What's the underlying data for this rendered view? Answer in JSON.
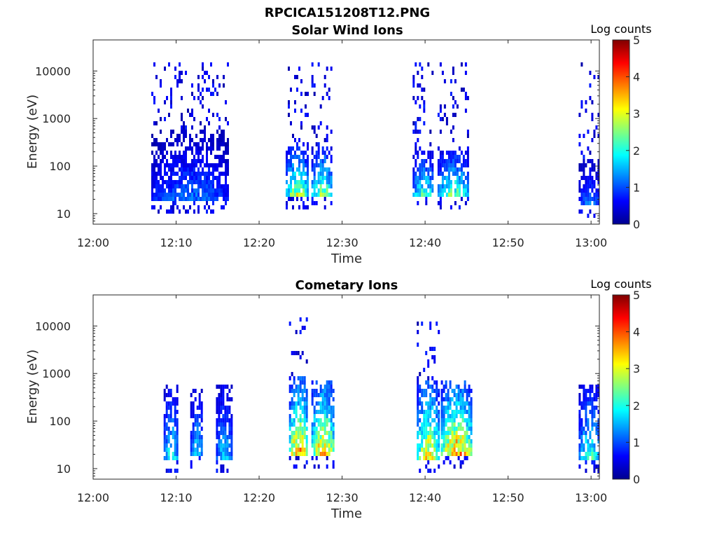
{
  "figure_title": "RPCICA151208T12.PNG",
  "chart_data": [
    {
      "type": "heatmap",
      "title": "Solar Wind Ions",
      "xlabel": "Time",
      "ylabel": "Energy (eV)",
      "x_ticks": [
        "12:00",
        "12:10",
        "12:20",
        "12:30",
        "12:40",
        "12:50",
        "13:00"
      ],
      "x_range_minutes": [
        0,
        61
      ],
      "y_scale": "log",
      "y_ticks": [
        "10",
        "100",
        "1000",
        "10000"
      ],
      "y_range": [
        6,
        45000
      ],
      "colorbar": {
        "title": "Log counts",
        "min": 0,
        "max": 5,
        "ticks": [
          "0",
          "1",
          "2",
          "3",
          "4",
          "5"
        ],
        "colormap": "jet"
      },
      "bursts": [
        {
          "start_min": 7.0,
          "end_min": 16.2,
          "band_energy_ev": [
            20,
            600
          ],
          "peak_log_counts": 1.2,
          "sparse_high_energy": true
        },
        {
          "start_min": 23.2,
          "end_min": 25.8,
          "band_energy_ev": [
            25,
            300
          ],
          "peak_log_counts": 2.8,
          "sparse_high_energy": true
        },
        {
          "start_min": 26.3,
          "end_min": 28.8,
          "band_energy_ev": [
            25,
            300
          ],
          "peak_log_counts": 2.6,
          "sparse_high_energy": true
        },
        {
          "start_min": 38.5,
          "end_min": 41.0,
          "band_energy_ev": [
            25,
            250
          ],
          "peak_log_counts": 2.2,
          "sparse_high_energy": true
        },
        {
          "start_min": 41.5,
          "end_min": 45.2,
          "band_energy_ev": [
            25,
            250
          ],
          "peak_log_counts": 2.4,
          "sparse_high_energy": true
        },
        {
          "start_min": 58.5,
          "end_min": 61.0,
          "band_energy_ev": [
            15,
            150
          ],
          "peak_log_counts": 1.3,
          "sparse_high_energy": true
        }
      ]
    },
    {
      "type": "heatmap",
      "title": "Cometary Ions",
      "xlabel": "Time",
      "ylabel": "Energy (eV)",
      "x_ticks": [
        "12:00",
        "12:10",
        "12:20",
        "12:30",
        "12:40",
        "12:50",
        "13:00"
      ],
      "x_range_minutes": [
        0,
        61
      ],
      "y_scale": "log",
      "y_ticks": [
        "10",
        "100",
        "1000",
        "10000"
      ],
      "y_range": [
        6,
        45000
      ],
      "colorbar": {
        "title": "Log counts",
        "min": 0,
        "max": 5,
        "ticks": [
          "0",
          "1",
          "2",
          "3",
          "4",
          "5"
        ],
        "colormap": "jet"
      },
      "bursts": [
        {
          "start_min": 8.5,
          "end_min": 10.2,
          "band_energy_ev": [
            15,
            700
          ],
          "peak_log_counts": 2.0,
          "sparse_high_energy": false
        },
        {
          "start_min": 11.7,
          "end_min": 13.2,
          "band_energy_ev": [
            20,
            500
          ],
          "peak_log_counts": 1.8,
          "sparse_high_energy": false
        },
        {
          "start_min": 14.8,
          "end_min": 16.6,
          "band_energy_ev": [
            15,
            600
          ],
          "peak_log_counts": 1.8,
          "sparse_high_energy": false
        },
        {
          "start_min": 23.6,
          "end_min": 25.8,
          "band_energy_ev": [
            20,
            900
          ],
          "peak_log_counts": 3.8,
          "sparse_high_energy": true
        },
        {
          "start_min": 26.3,
          "end_min": 29.0,
          "band_energy_ev": [
            20,
            800
          ],
          "peak_log_counts": 3.6,
          "sparse_high_energy": false
        },
        {
          "start_min": 39.0,
          "end_min": 41.6,
          "band_energy_ev": [
            15,
            800
          ],
          "peak_log_counts": 3.5,
          "sparse_high_energy": true
        },
        {
          "start_min": 41.9,
          "end_min": 45.5,
          "band_energy_ev": [
            20,
            800
          ],
          "peak_log_counts": 3.8,
          "sparse_high_energy": false
        },
        {
          "start_min": 58.5,
          "end_min": 61.0,
          "band_energy_ev": [
            15,
            700
          ],
          "peak_log_counts": 2.2,
          "sparse_high_energy": false
        }
      ]
    }
  ]
}
